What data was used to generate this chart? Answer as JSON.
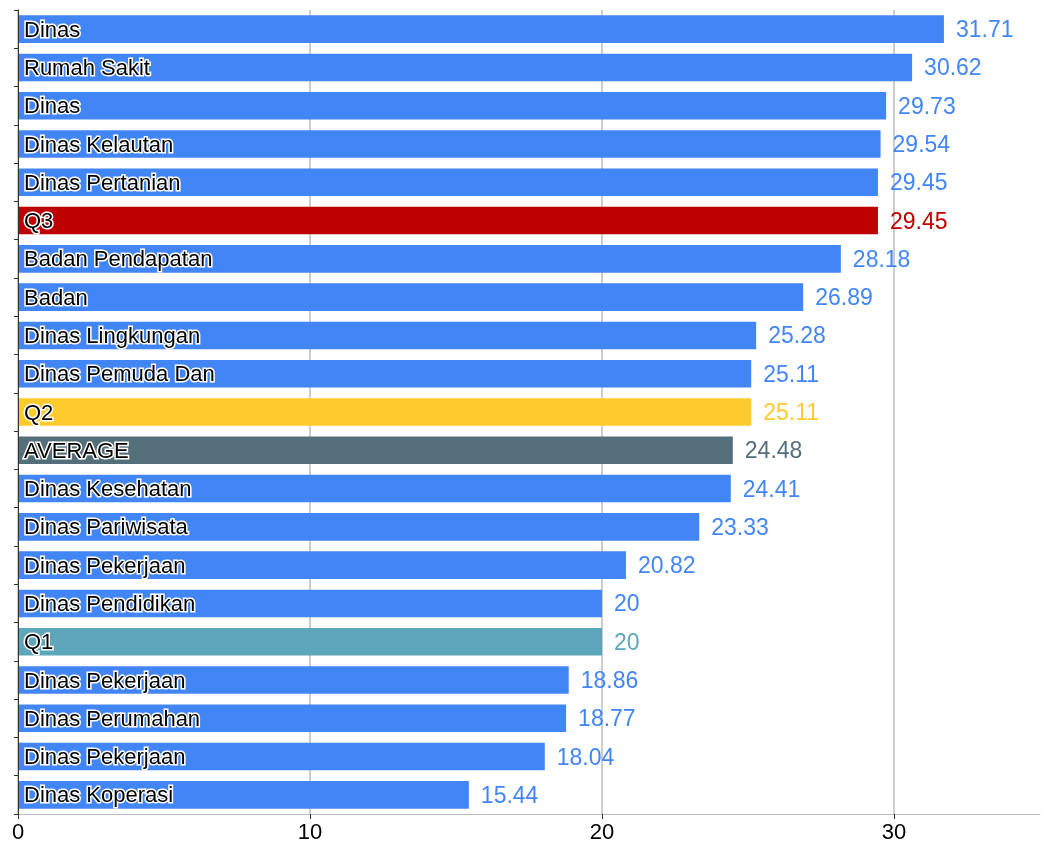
{
  "chart_data": {
    "type": "bar",
    "orientation": "horizontal",
    "categories": [
      "Dinas",
      "Rumah Sakit",
      "Dinas",
      "Dinas Kelautan",
      "Dinas Pertanian",
      "Q3",
      "Badan Pendapatan",
      "Badan",
      "Dinas Lingkungan",
      "Dinas Pemuda Dan",
      "Q2",
      "AVERAGE",
      "Dinas Kesehatan",
      "Dinas Pariwisata",
      "Dinas Pekerjaan",
      "Dinas Pendidikan",
      "Q1",
      "Dinas Pekerjaan",
      "Dinas Perumahan",
      "Dinas Pekerjaan",
      "Dinas Koperasi"
    ],
    "values": [
      31.71,
      30.62,
      29.73,
      29.54,
      29.45,
      29.45,
      28.18,
      26.89,
      25.28,
      25.11,
      25.11,
      24.48,
      24.41,
      23.33,
      20.82,
      20,
      20,
      18.86,
      18.77,
      18.04,
      15.44
    ],
    "colors": [
      "#4285f4",
      "#4285f4",
      "#4285f4",
      "#4285f4",
      "#4285f4",
      "#bf0000",
      "#4285f4",
      "#4285f4",
      "#4285f4",
      "#4285f4",
      "#ffca2c",
      "#546e7a",
      "#4285f4",
      "#4285f4",
      "#4285f4",
      "#4285f4",
      "#5ea6ba",
      "#4285f4",
      "#4285f4",
      "#4285f4",
      "#4285f4"
    ],
    "xlim": [
      0,
      35
    ],
    "xticks": [
      0,
      10,
      20,
      30
    ],
    "grid": "x",
    "data_labels": true
  }
}
